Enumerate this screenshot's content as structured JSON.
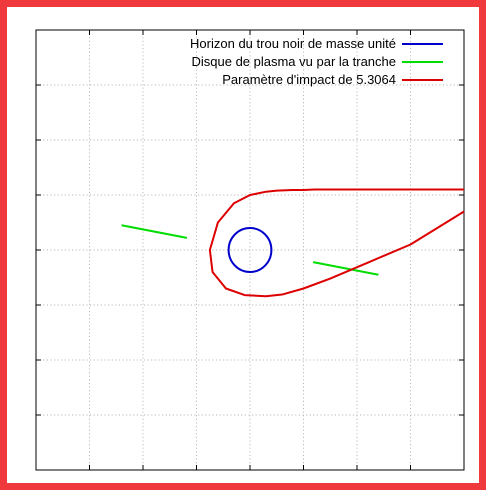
{
  "chart_data": {
    "type": "line",
    "title": "",
    "xlabel": "",
    "ylabel": "",
    "xlim": [
      -4,
      4
    ],
    "ylim": [
      -4,
      4
    ],
    "grid": true,
    "tick_labels_visible": false,
    "legend_position": "top-right",
    "series": [
      {
        "name": "Horizon du trou noir de masse unité",
        "color": "#0000cc",
        "kind": "circle",
        "center": [
          0,
          0
        ],
        "radius": 0.4
      },
      {
        "name": "Disque de plasma vu par la tranche",
        "color": "#00dd00",
        "kind": "segments",
        "segments": [
          [
            [
              -2.4,
              0.45
            ],
            [
              -1.18,
              0.22
            ]
          ],
          [
            [
              1.18,
              -0.22
            ],
            [
              2.4,
              -0.45
            ]
          ]
        ]
      },
      {
        "name": "Paramètre d'impact de 5.3064",
        "color": "#dd0000",
        "kind": "polyline",
        "x": [
          4.0,
          2.0,
          1.2,
          1.0,
          0.8,
          0.5,
          0.3,
          0.0,
          -0.3,
          -0.6,
          -0.75,
          -0.7,
          -0.45,
          -0.1,
          0.3,
          0.6,
          1.0,
          1.5,
          2.2,
          3.0,
          4.0
        ],
        "y": [
          1.1,
          1.1,
          1.1,
          1.09,
          1.09,
          1.08,
          1.06,
          1.0,
          0.85,
          0.5,
          0.0,
          -0.4,
          -0.7,
          -0.82,
          -0.84,
          -0.81,
          -0.7,
          -0.52,
          -0.23,
          0.1,
          0.7
        ]
      }
    ]
  }
}
